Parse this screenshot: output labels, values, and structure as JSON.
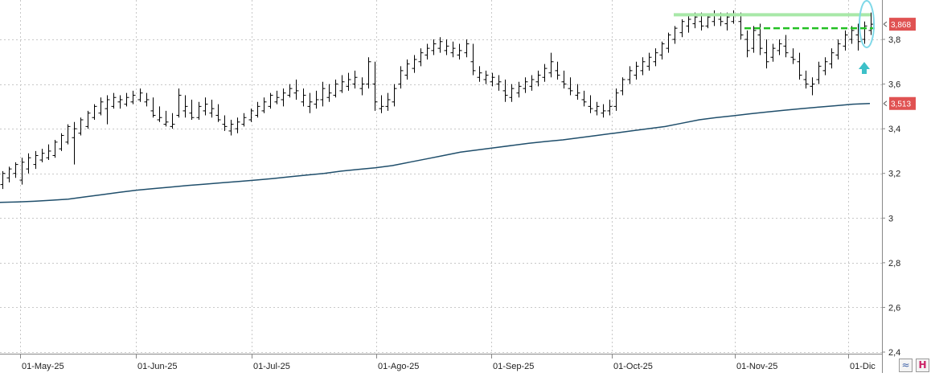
{
  "chart_data": {
    "type": "ohlc",
    "y_axis": {
      "min": 2.4,
      "max": 3.95,
      "ticks": [
        "2,4",
        "2,6",
        "2,8",
        "3",
        "3,2",
        "3,4",
        "3,6",
        "3,8"
      ],
      "tick_values": [
        2.4,
        2.6,
        2.8,
        3.0,
        3.2,
        3.4,
        3.6,
        3.8
      ],
      "position": "right"
    },
    "x_axis": {
      "labels": [
        "01-May-25",
        "01-Jun-25",
        "01-Jul-25",
        "01-Ago-25",
        "01-Sep-25",
        "01-Oct-25",
        "01-Nov-25",
        "01-Dic"
      ]
    },
    "grid": true,
    "price_tags": [
      {
        "label": "3,868",
        "value": 3.868,
        "color": "#e05252"
      },
      {
        "label": "3,513",
        "value": 3.513,
        "color": "#e05252"
      }
    ],
    "bars": [
      [
        3.15,
        3.21,
        3.13,
        3.2
      ],
      [
        3.18,
        3.23,
        3.16,
        3.22
      ],
      [
        3.2,
        3.25,
        3.18,
        3.24
      ],
      [
        3.17,
        3.27,
        3.15,
        3.25
      ],
      [
        3.22,
        3.29,
        3.2,
        3.27
      ],
      [
        3.24,
        3.3,
        3.22,
        3.28
      ],
      [
        3.26,
        3.31,
        3.25,
        3.29
      ],
      [
        3.27,
        3.33,
        3.26,
        3.3
      ],
      [
        3.28,
        3.35,
        3.27,
        3.34
      ],
      [
        3.31,
        3.38,
        3.3,
        3.37
      ],
      [
        3.34,
        3.42,
        3.33,
        3.41
      ],
      [
        3.36,
        3.43,
        3.24,
        3.4
      ],
      [
        3.38,
        3.45,
        3.37,
        3.44
      ],
      [
        3.41,
        3.48,
        3.4,
        3.47
      ],
      [
        3.45,
        3.51,
        3.44,
        3.5
      ],
      [
        3.47,
        3.54,
        3.46,
        3.52
      ],
      [
        3.49,
        3.55,
        3.42,
        3.53
      ],
      [
        3.5,
        3.56,
        3.49,
        3.54
      ],
      [
        3.52,
        3.55,
        3.49,
        3.53
      ],
      [
        3.51,
        3.56,
        3.5,
        3.54
      ],
      [
        3.52,
        3.57,
        3.51,
        3.55
      ],
      [
        3.53,
        3.58,
        3.52,
        3.56
      ],
      [
        3.52,
        3.56,
        3.5,
        3.53
      ],
      [
        3.48,
        3.54,
        3.45,
        3.46
      ],
      [
        3.44,
        3.5,
        3.43,
        3.45
      ],
      [
        3.42,
        3.48,
        3.41,
        3.43
      ],
      [
        3.41,
        3.47,
        3.4,
        3.42
      ],
      [
        3.46,
        3.58,
        3.45,
        3.55
      ],
      [
        3.48,
        3.55,
        3.45,
        3.5
      ],
      [
        3.47,
        3.53,
        3.44,
        3.45
      ],
      [
        3.45,
        3.52,
        3.44,
        3.5
      ],
      [
        3.48,
        3.54,
        3.46,
        3.51
      ],
      [
        3.47,
        3.53,
        3.45,
        3.49
      ],
      [
        3.46,
        3.51,
        3.43,
        3.44
      ],
      [
        3.42,
        3.46,
        3.39,
        3.41
      ],
      [
        3.39,
        3.44,
        3.37,
        3.42
      ],
      [
        3.4,
        3.45,
        3.38,
        3.43
      ],
      [
        3.42,
        3.47,
        3.41,
        3.45
      ],
      [
        3.44,
        3.49,
        3.43,
        3.48
      ],
      [
        3.46,
        3.52,
        3.45,
        3.5
      ],
      [
        3.48,
        3.54,
        3.47,
        3.52
      ],
      [
        3.5,
        3.56,
        3.49,
        3.55
      ],
      [
        3.52,
        3.57,
        3.51,
        3.54
      ],
      [
        3.53,
        3.58,
        3.5,
        3.56
      ],
      [
        3.55,
        3.6,
        3.54,
        3.58
      ],
      [
        3.56,
        3.62,
        3.53,
        3.57
      ],
      [
        3.52,
        3.58,
        3.5,
        3.55
      ],
      [
        3.5,
        3.56,
        3.47,
        3.52
      ],
      [
        3.51,
        3.57,
        3.49,
        3.53
      ],
      [
        3.53,
        3.61,
        3.5,
        3.58
      ],
      [
        3.54,
        3.6,
        3.52,
        3.56
      ],
      [
        3.55,
        3.62,
        3.54,
        3.6
      ],
      [
        3.57,
        3.64,
        3.56,
        3.61
      ],
      [
        3.59,
        3.65,
        3.57,
        3.62
      ],
      [
        3.6,
        3.66,
        3.58,
        3.63
      ],
      [
        3.58,
        3.63,
        3.55,
        3.6
      ],
      [
        3.6,
        3.72,
        3.58,
        3.7
      ],
      [
        3.6,
        3.7,
        3.48,
        3.52
      ],
      [
        3.49,
        3.55,
        3.47,
        3.5
      ],
      [
        3.5,
        3.56,
        3.48,
        3.53
      ],
      [
        3.52,
        3.6,
        3.5,
        3.58
      ],
      [
        3.6,
        3.68,
        3.58,
        3.66
      ],
      [
        3.64,
        3.71,
        3.62,
        3.69
      ],
      [
        3.67,
        3.73,
        3.65,
        3.71
      ],
      [
        3.7,
        3.76,
        3.68,
        3.74
      ],
      [
        3.73,
        3.78,
        3.71,
        3.76
      ],
      [
        3.75,
        3.8,
        3.73,
        3.78
      ],
      [
        3.76,
        3.81,
        3.74,
        3.79
      ],
      [
        3.75,
        3.8,
        3.73,
        3.77
      ],
      [
        3.74,
        3.79,
        3.72,
        3.76
      ],
      [
        3.73,
        3.78,
        3.71,
        3.75
      ],
      [
        3.74,
        3.8,
        3.72,
        3.78
      ],
      [
        3.7,
        3.78,
        3.64,
        3.66
      ],
      [
        3.63,
        3.68,
        3.61,
        3.65
      ],
      [
        3.62,
        3.66,
        3.6,
        3.64
      ],
      [
        3.61,
        3.65,
        3.59,
        3.63
      ],
      [
        3.6,
        3.64,
        3.57,
        3.61
      ],
      [
        3.57,
        3.62,
        3.52,
        3.55
      ],
      [
        3.54,
        3.6,
        3.52,
        3.58
      ],
      [
        3.56,
        3.61,
        3.54,
        3.59
      ],
      [
        3.58,
        3.63,
        3.56,
        3.61
      ],
      [
        3.59,
        3.64,
        3.57,
        3.62
      ],
      [
        3.61,
        3.66,
        3.59,
        3.64
      ],
      [
        3.63,
        3.69,
        3.61,
        3.67
      ],
      [
        3.65,
        3.74,
        3.63,
        3.7
      ],
      [
        3.66,
        3.7,
        3.62,
        3.64
      ],
      [
        3.61,
        3.66,
        3.58,
        3.6
      ],
      [
        3.58,
        3.63,
        3.55,
        3.57
      ],
      [
        3.55,
        3.6,
        3.53,
        3.56
      ],
      [
        3.53,
        3.57,
        3.5,
        3.52
      ],
      [
        3.5,
        3.55,
        3.47,
        3.49
      ],
      [
        3.48,
        3.52,
        3.46,
        3.5
      ],
      [
        3.47,
        3.51,
        3.45,
        3.48
      ],
      [
        3.48,
        3.53,
        3.46,
        3.5
      ],
      [
        3.5,
        3.58,
        3.48,
        3.56
      ],
      [
        3.57,
        3.63,
        3.55,
        3.62
      ],
      [
        3.62,
        3.68,
        3.6,
        3.66
      ],
      [
        3.64,
        3.7,
        3.62,
        3.68
      ],
      [
        3.66,
        3.72,
        3.64,
        3.7
      ],
      [
        3.68,
        3.74,
        3.66,
        3.72
      ],
      [
        3.7,
        3.76,
        3.68,
        3.74
      ],
      [
        3.73,
        3.79,
        3.71,
        3.78
      ],
      [
        3.76,
        3.83,
        3.74,
        3.82
      ],
      [
        3.8,
        3.86,
        3.78,
        3.85
      ],
      [
        3.83,
        3.89,
        3.81,
        3.88
      ],
      [
        3.86,
        3.91,
        3.83,
        3.89
      ],
      [
        3.87,
        3.92,
        3.85,
        3.9
      ],
      [
        3.88,
        3.92,
        3.84,
        3.86
      ],
      [
        3.86,
        3.91,
        3.85,
        3.9
      ],
      [
        3.88,
        3.93,
        3.86,
        3.91
      ],
      [
        3.89,
        3.92,
        3.86,
        3.88
      ],
      [
        3.87,
        3.92,
        3.84,
        3.9
      ],
      [
        3.88,
        3.93,
        3.87,
        3.91
      ],
      [
        3.88,
        3.92,
        3.8,
        3.82
      ],
      [
        3.8,
        3.84,
        3.72,
        3.75
      ],
      [
        3.76,
        3.86,
        3.74,
        3.84
      ],
      [
        3.82,
        3.87,
        3.73,
        3.76
      ],
      [
        3.74,
        3.8,
        3.67,
        3.7
      ],
      [
        3.72,
        3.78,
        3.7,
        3.76
      ],
      [
        3.75,
        3.8,
        3.73,
        3.78
      ],
      [
        3.77,
        3.82,
        3.72,
        3.74
      ],
      [
        3.72,
        3.76,
        3.69,
        3.71
      ],
      [
        3.7,
        3.74,
        3.62,
        3.64
      ],
      [
        3.62,
        3.66,
        3.58,
        3.6
      ],
      [
        3.59,
        3.63,
        3.55,
        3.6
      ],
      [
        3.62,
        3.7,
        3.6,
        3.68
      ],
      [
        3.66,
        3.72,
        3.64,
        3.7
      ],
      [
        3.69,
        3.76,
        3.67,
        3.74
      ],
      [
        3.73,
        3.8,
        3.71,
        3.78
      ],
      [
        3.77,
        3.84,
        3.75,
        3.82
      ],
      [
        3.8,
        3.86,
        3.78,
        3.84
      ],
      [
        3.82,
        3.87,
        3.75,
        3.79
      ],
      [
        3.8,
        3.88,
        3.78,
        3.86
      ],
      [
        3.84,
        3.92,
        3.82,
        3.868
      ]
    ],
    "series": [
      {
        "type": "line",
        "color": "#1f4e6b",
        "values": [
          3.07,
          3.072,
          3.075,
          3.08,
          3.085,
          3.095,
          3.105,
          3.115,
          3.125,
          3.132,
          3.139,
          3.146,
          3.152,
          3.158,
          3.164,
          3.17,
          3.177,
          3.185,
          3.193,
          3.2,
          3.21,
          3.218,
          3.225,
          3.235,
          3.25,
          3.265,
          3.28,
          3.295,
          3.305,
          3.315,
          3.325,
          3.335,
          3.343,
          3.35,
          3.36,
          3.37,
          3.38,
          3.39,
          3.4,
          3.41,
          3.425,
          3.44,
          3.45,
          3.458,
          3.467,
          3.475,
          3.483,
          3.49,
          3.497,
          3.503,
          3.51,
          3.513
        ]
      }
    ],
    "annotations": {
      "resistance_color": "#a8e8a8",
      "resistance_value": 3.91,
      "support_color": "#22c022",
      "support_value": 3.85,
      "arrow_color": "#3cc0c8",
      "ellipse_color": "#7fd8e8"
    }
  },
  "controls": {
    "btn_a_glyph": "≈",
    "btn_b_glyph": "H"
  }
}
